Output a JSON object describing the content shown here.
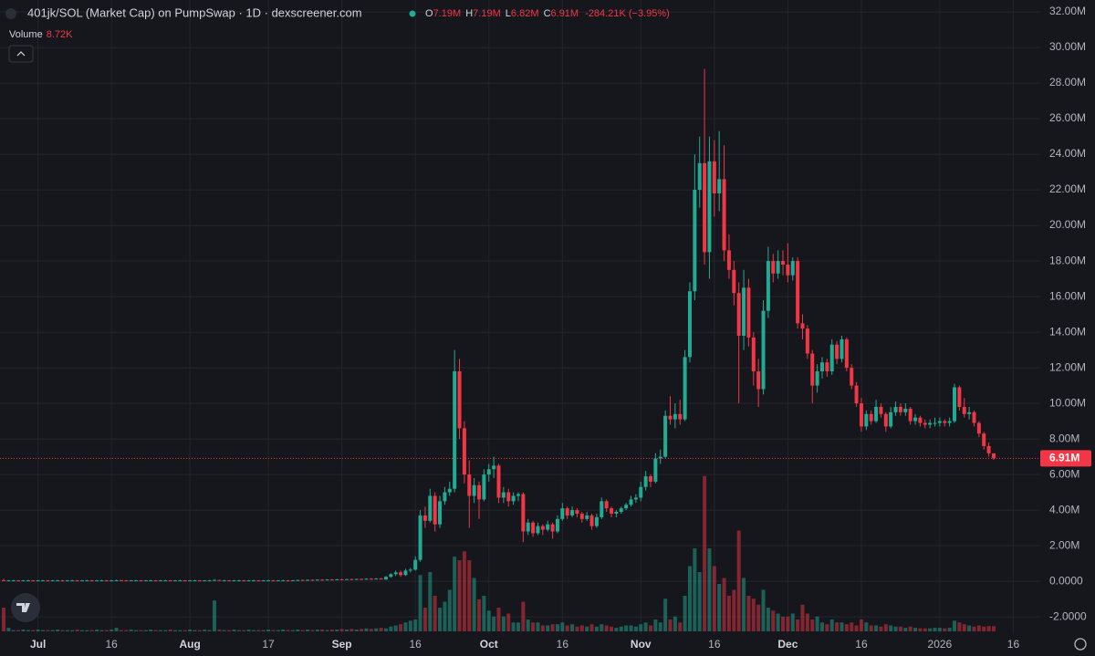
{
  "header": {
    "title": "401jk/SOL (Market Cap) on PumpSwap · 1D · dexscreener.com",
    "o_label": "O",
    "o": "7.19M",
    "h_label": "H",
    "h": "7.19M",
    "l_label": "L",
    "l": "6.82M",
    "c_label": "C",
    "c": "6.91M",
    "change": "-284.21K (−3.95%)",
    "volume_label": "Volume",
    "volume_value": "8.72K"
  },
  "chart_data": {
    "type": "candlestick",
    "up_color": "#22ab94",
    "down_color": "#f23645",
    "grid": true,
    "last_price_label": "6.91M",
    "xlim": [
      -0.75,
      211.5
    ],
    "ylim": [
      -4.2,
      32.67
    ],
    "xticks": [
      {
        "value": 7,
        "label": "Jul"
      },
      {
        "value": 22,
        "label": "16"
      },
      {
        "value": 38,
        "label": "Aug"
      },
      {
        "value": 54,
        "label": "17"
      },
      {
        "value": 69,
        "label": "Sep"
      },
      {
        "value": 84,
        "label": "16"
      },
      {
        "value": 99,
        "label": "Oct"
      },
      {
        "value": 114,
        "label": "16"
      },
      {
        "value": 130,
        "label": "Nov"
      },
      {
        "value": 145,
        "label": "16"
      },
      {
        "value": 160,
        "label": "Dec"
      },
      {
        "value": 175,
        "label": "16"
      },
      {
        "value": 191,
        "label": "2026"
      },
      {
        "value": 206,
        "label": "16"
      }
    ],
    "yticks": [
      {
        "value": -2,
        "label": "-2.0000"
      },
      {
        "value": 0,
        "label": "0.0000"
      },
      {
        "value": 2,
        "label": "2.00M"
      },
      {
        "value": 4,
        "label": "4.00M"
      },
      {
        "value": 6,
        "label": "6.00M"
      },
      {
        "value": 8,
        "label": "8.00M"
      },
      {
        "value": 10,
        "label": "10.00M"
      },
      {
        "value": 12,
        "label": "12.00M"
      },
      {
        "value": 14,
        "label": "14.00M"
      },
      {
        "value": 16,
        "label": "16.00M"
      },
      {
        "value": 18,
        "label": "18.00M"
      },
      {
        "value": 20,
        "label": "20.00M"
      },
      {
        "value": 22,
        "label": "22.00M"
      },
      {
        "value": 24,
        "label": "24.00M"
      },
      {
        "value": 26,
        "label": "26.00M"
      },
      {
        "value": 28,
        "label": "28.00M"
      },
      {
        "value": 30,
        "label": "30.00M"
      },
      {
        "value": 32,
        "label": "32.00M"
      }
    ],
    "ohlc": [
      [
        0.06,
        0.14,
        0.02,
        0.04
      ],
      [
        0.04,
        0.07,
        0.03,
        0.05
      ],
      [
        0.05,
        0.08,
        0.03,
        0.05
      ],
      [
        0.05,
        0.07,
        0.03,
        0.04
      ],
      [
        0.04,
        0.07,
        0.03,
        0.05
      ],
      [
        0.05,
        0.08,
        0.03,
        0.05
      ],
      [
        0.05,
        0.07,
        0.03,
        0.04
      ],
      [
        0.04,
        0.07,
        0.03,
        0.05
      ],
      [
        0.05,
        0.08,
        0.03,
        0.05
      ],
      [
        0.05,
        0.07,
        0.03,
        0.04
      ],
      [
        0.04,
        0.07,
        0.03,
        0.05
      ],
      [
        0.05,
        0.08,
        0.03,
        0.05
      ],
      [
        0.05,
        0.07,
        0.03,
        0.04
      ],
      [
        0.04,
        0.07,
        0.03,
        0.05
      ],
      [
        0.05,
        0.08,
        0.03,
        0.05
      ],
      [
        0.05,
        0.07,
        0.03,
        0.04
      ],
      [
        0.04,
        0.07,
        0.03,
        0.05
      ],
      [
        0.05,
        0.08,
        0.03,
        0.05
      ],
      [
        0.05,
        0.07,
        0.03,
        0.04
      ],
      [
        0.04,
        0.07,
        0.03,
        0.05
      ],
      [
        0.05,
        0.08,
        0.03,
        0.05
      ],
      [
        0.05,
        0.07,
        0.03,
        0.04
      ],
      [
        0.04,
        0.07,
        0.03,
        0.05
      ],
      [
        0.05,
        0.09,
        0.03,
        0.06
      ],
      [
        0.06,
        0.08,
        0.04,
        0.05
      ],
      [
        0.05,
        0.07,
        0.03,
        0.04
      ],
      [
        0.04,
        0.07,
        0.03,
        0.05
      ],
      [
        0.05,
        0.08,
        0.03,
        0.05
      ],
      [
        0.05,
        0.07,
        0.03,
        0.04
      ],
      [
        0.04,
        0.07,
        0.03,
        0.05
      ],
      [
        0.05,
        0.08,
        0.03,
        0.05
      ],
      [
        0.05,
        0.07,
        0.03,
        0.04
      ],
      [
        0.04,
        0.07,
        0.03,
        0.05
      ],
      [
        0.05,
        0.08,
        0.03,
        0.05
      ],
      [
        0.05,
        0.07,
        0.03,
        0.04
      ],
      [
        0.04,
        0.07,
        0.03,
        0.05
      ],
      [
        0.05,
        0.08,
        0.03,
        0.05
      ],
      [
        0.05,
        0.07,
        0.03,
        0.04
      ],
      [
        0.04,
        0.07,
        0.03,
        0.05
      ],
      [
        0.05,
        0.08,
        0.03,
        0.05
      ],
      [
        0.05,
        0.07,
        0.03,
        0.04
      ],
      [
        0.04,
        0.07,
        0.03,
        0.05
      ],
      [
        0.05,
        0.08,
        0.03,
        0.05
      ],
      [
        0.05,
        0.12,
        0.03,
        0.07
      ],
      [
        0.07,
        0.09,
        0.04,
        0.05
      ],
      [
        0.05,
        0.08,
        0.03,
        0.05
      ],
      [
        0.05,
        0.07,
        0.03,
        0.04
      ],
      [
        0.04,
        0.07,
        0.03,
        0.05
      ],
      [
        0.05,
        0.08,
        0.03,
        0.05
      ],
      [
        0.05,
        0.07,
        0.03,
        0.04
      ],
      [
        0.04,
        0.07,
        0.03,
        0.05
      ],
      [
        0.05,
        0.08,
        0.03,
        0.05
      ],
      [
        0.05,
        0.07,
        0.03,
        0.04
      ],
      [
        0.04,
        0.07,
        0.03,
        0.05
      ],
      [
        0.05,
        0.08,
        0.03,
        0.05
      ],
      [
        0.05,
        0.07,
        0.03,
        0.04
      ],
      [
        0.04,
        0.07,
        0.03,
        0.05
      ],
      [
        0.05,
        0.08,
        0.03,
        0.05
      ],
      [
        0.05,
        0.07,
        0.03,
        0.04
      ],
      [
        0.04,
        0.07,
        0.03,
        0.05
      ],
      [
        0.05,
        0.09,
        0.04,
        0.07
      ],
      [
        0.07,
        0.1,
        0.05,
        0.06
      ],
      [
        0.06,
        0.1,
        0.05,
        0.08
      ],
      [
        0.08,
        0.11,
        0.06,
        0.07
      ],
      [
        0.07,
        0.11,
        0.06,
        0.09
      ],
      [
        0.09,
        0.12,
        0.07,
        0.08
      ],
      [
        0.08,
        0.12,
        0.07,
        0.1
      ],
      [
        0.1,
        0.13,
        0.08,
        0.09
      ],
      [
        0.09,
        0.13,
        0.08,
        0.11
      ],
      [
        0.11,
        0.14,
        0.09,
        0.1
      ],
      [
        0.1,
        0.14,
        0.09,
        0.12
      ],
      [
        0.12,
        0.15,
        0.1,
        0.11
      ],
      [
        0.11,
        0.15,
        0.1,
        0.13
      ],
      [
        0.13,
        0.16,
        0.11,
        0.12
      ],
      [
        0.12,
        0.17,
        0.11,
        0.14
      ],
      [
        0.14,
        0.18,
        0.12,
        0.13
      ],
      [
        0.13,
        0.18,
        0.12,
        0.15
      ],
      [
        0.15,
        0.19,
        0.12,
        0.1
      ],
      [
        0.1,
        0.3,
        0.08,
        0.25
      ],
      [
        0.25,
        0.45,
        0.2,
        0.4
      ],
      [
        0.4,
        0.6,
        0.3,
        0.5
      ],
      [
        0.5,
        0.6,
        0.25,
        0.35
      ],
      [
        0.35,
        0.7,
        0.3,
        0.6
      ],
      [
        0.6,
        0.75,
        0.5,
        0.65
      ],
      [
        0.65,
        1.4,
        0.6,
        1.2
      ],
      [
        1.2,
        4.0,
        1.1,
        3.7
      ],
      [
        3.7,
        4.2,
        3.0,
        3.4
      ],
      [
        3.4,
        5.2,
        3.3,
        4.8
      ],
      [
        4.8,
        5.0,
        2.8,
        3.2
      ],
      [
        3.2,
        4.8,
        3.0,
        4.5
      ],
      [
        4.5,
        5.3,
        4.3,
        5.0
      ],
      [
        5.0,
        5.6,
        4.8,
        5.2
      ],
      [
        5.2,
        13.0,
        5.0,
        11.8
      ],
      [
        11.8,
        12.5,
        8.0,
        8.6
      ],
      [
        8.6,
        9.0,
        5.5,
        6.0
      ],
      [
        6.0,
        6.8,
        3.0,
        4.8
      ],
      [
        4.8,
        5.8,
        4.4,
        5.4
      ],
      [
        5.4,
        5.6,
        3.5,
        4.6
      ],
      [
        4.6,
        6.3,
        4.5,
        6.0
      ],
      [
        6.0,
        6.6,
        5.6,
        6.3
      ],
      [
        6.3,
        7.0,
        5.8,
        6.5
      ],
      [
        6.5,
        6.6,
        4.4,
        4.7
      ],
      [
        4.7,
        5.3,
        4.4,
        5.0
      ],
      [
        5.0,
        5.2,
        4.2,
        4.5
      ],
      [
        4.5,
        5.0,
        4.3,
        4.8
      ],
      [
        4.8,
        5.0,
        4.5,
        4.9
      ],
      [
        4.9,
        5.0,
        2.2,
        2.8
      ],
      [
        2.8,
        3.5,
        2.6,
        3.3
      ],
      [
        3.3,
        3.4,
        2.5,
        2.7
      ],
      [
        2.7,
        3.3,
        2.6,
        3.1
      ],
      [
        3.1,
        3.2,
        2.6,
        2.9
      ],
      [
        2.9,
        3.4,
        2.8,
        3.2
      ],
      [
        3.2,
        3.3,
        2.4,
        2.8
      ],
      [
        2.8,
        3.7,
        2.7,
        3.5
      ],
      [
        3.5,
        4.4,
        3.4,
        4.1
      ],
      [
        4.1,
        4.2,
        3.5,
        3.7
      ],
      [
        3.7,
        4.2,
        3.6,
        4.0
      ],
      [
        4.0,
        4.1,
        3.6,
        3.8
      ],
      [
        3.8,
        3.9,
        3.3,
        3.5
      ],
      [
        3.5,
        3.9,
        3.4,
        3.7
      ],
      [
        3.7,
        3.8,
        2.9,
        3.1
      ],
      [
        3.1,
        3.8,
        3.0,
        3.6
      ],
      [
        3.6,
        4.7,
        3.5,
        4.5
      ],
      [
        4.5,
        4.6,
        3.9,
        4.1
      ],
      [
        4.1,
        4.2,
        3.6,
        3.8
      ],
      [
        3.8,
        4.0,
        3.6,
        3.9
      ],
      [
        3.9,
        4.2,
        3.8,
        4.1
      ],
      [
        4.1,
        4.4,
        4.0,
        4.3
      ],
      [
        4.3,
        4.8,
        4.2,
        4.6
      ],
      [
        4.6,
        4.9,
        4.4,
        4.7
      ],
      [
        4.7,
        5.6,
        4.5,
        5.3
      ],
      [
        5.3,
        6.2,
        5.1,
        5.9
      ],
      [
        5.9,
        6.0,
        5.3,
        5.6
      ],
      [
        5.6,
        7.2,
        5.5,
        6.9
      ],
      [
        6.9,
        7.4,
        6.6,
        7.0
      ],
      [
        7.0,
        9.6,
        6.9,
        9.3
      ],
      [
        9.3,
        10.4,
        8.8,
        9.1
      ],
      [
        9.1,
        10.0,
        8.6,
        9.4
      ],
      [
        9.4,
        10.2,
        8.8,
        9.1
      ],
      [
        9.1,
        13.0,
        9.0,
        12.6
      ],
      [
        12.6,
        16.8,
        12.3,
        16.3
      ],
      [
        16.3,
        24.0,
        15.8,
        22.0
      ],
      [
        22.0,
        25.0,
        21.0,
        23.5
      ],
      [
        23.5,
        28.8,
        17.8,
        18.5
      ],
      [
        18.5,
        25.0,
        17.0,
        23.6
      ],
      [
        23.6,
        24.8,
        20.5,
        21.8
      ],
      [
        21.8,
        25.3,
        20.8,
        22.6
      ],
      [
        22.6,
        24.5,
        18.0,
        18.6
      ],
      [
        18.6,
        19.5,
        17.0,
        17.5
      ],
      [
        17.5,
        18.0,
        15.5,
        16.2
      ],
      [
        16.2,
        16.8,
        10.0,
        13.8
      ],
      [
        13.8,
        17.5,
        13.0,
        16.5
      ],
      [
        16.5,
        17.0,
        13.2,
        13.7
      ],
      [
        13.7,
        14.0,
        11.0,
        11.8
      ],
      [
        11.8,
        12.5,
        9.8,
        10.8
      ],
      [
        10.8,
        15.8,
        10.5,
        15.2
      ],
      [
        15.2,
        18.8,
        14.8,
        18.0
      ],
      [
        18.0,
        18.4,
        16.8,
        17.3
      ],
      [
        17.3,
        18.6,
        17.0,
        18.0
      ],
      [
        18.0,
        18.6,
        17.2,
        17.8
      ],
      [
        17.8,
        19.0,
        16.8,
        17.2
      ],
      [
        17.2,
        18.2,
        16.9,
        18.0
      ],
      [
        18.0,
        18.2,
        14.2,
        14.5
      ],
      [
        14.5,
        15.0,
        13.6,
        14.2
      ],
      [
        14.2,
        14.4,
        12.5,
        12.8
      ],
      [
        12.8,
        13.0,
        10.0,
        11.0
      ],
      [
        11.0,
        12.2,
        10.6,
        11.8
      ],
      [
        11.8,
        12.6,
        11.4,
        12.3
      ],
      [
        12.3,
        12.5,
        11.5,
        11.8
      ],
      [
        11.8,
        13.6,
        11.6,
        13.3
      ],
      [
        13.3,
        13.5,
        12.2,
        12.5
      ],
      [
        12.5,
        13.8,
        12.3,
        13.6
      ],
      [
        13.6,
        13.7,
        11.8,
        12.0
      ],
      [
        12.0,
        12.2,
        10.8,
        11.0
      ],
      [
        11.0,
        11.2,
        9.8,
        10.0
      ],
      [
        10.0,
        10.3,
        8.4,
        8.7
      ],
      [
        8.7,
        9.6,
        8.5,
        9.4
      ],
      [
        9.4,
        9.6,
        8.8,
        9.0
      ],
      [
        9.0,
        10.2,
        8.9,
        9.8
      ],
      [
        9.8,
        10.0,
        9.2,
        9.4
      ],
      [
        9.4,
        9.5,
        8.4,
        8.7
      ],
      [
        8.7,
        9.8,
        8.6,
        9.5
      ],
      [
        9.5,
        10.1,
        9.3,
        9.8
      ],
      [
        9.8,
        10.0,
        9.3,
        9.5
      ],
      [
        9.5,
        10.0,
        9.3,
        9.7
      ],
      [
        9.7,
        9.8,
        8.8,
        9.0
      ],
      [
        9.0,
        9.4,
        8.8,
        9.2
      ],
      [
        9.2,
        9.3,
        8.7,
        8.9
      ],
      [
        8.9,
        9.1,
        8.6,
        8.8
      ],
      [
        8.8,
        9.1,
        8.6,
        8.9
      ],
      [
        8.9,
        9.2,
        8.7,
        8.9
      ],
      [
        8.9,
        9.2,
        8.7,
        9.0
      ],
      [
        9.0,
        9.1,
        8.7,
        8.9
      ],
      [
        8.9,
        9.2,
        8.7,
        9.0
      ],
      [
        9.0,
        11.1,
        8.9,
        10.9
      ],
      [
        10.9,
        11.0,
        9.6,
        9.8
      ],
      [
        9.8,
        10.3,
        9.2,
        9.4
      ],
      [
        9.4,
        9.8,
        9.1,
        9.5
      ],
      [
        9.5,
        9.6,
        8.7,
        8.9
      ],
      [
        8.9,
        9.0,
        8.1,
        8.3
      ],
      [
        8.3,
        8.4,
        7.4,
        7.6
      ],
      [
        7.6,
        7.8,
        7.0,
        7.19
      ],
      [
        7.19,
        7.19,
        6.82,
        6.91
      ]
    ],
    "volume": [
      40,
      6,
      2,
      2,
      3,
      2,
      2,
      3,
      2,
      2,
      2,
      3,
      2,
      2,
      2,
      3,
      2,
      2,
      2,
      3,
      2,
      2,
      3,
      6,
      2,
      2,
      3,
      2,
      2,
      2,
      3,
      2,
      2,
      2,
      3,
      2,
      2,
      2,
      3,
      2,
      2,
      3,
      2,
      52,
      3,
      2,
      2,
      3,
      2,
      2,
      3,
      2,
      2,
      2,
      3,
      2,
      2,
      3,
      2,
      2,
      3,
      2,
      3,
      2,
      3,
      3,
      2,
      3,
      3,
      4,
      3,
      4,
      3,
      4,
      5,
      4,
      5,
      6,
      5,
      8,
      10,
      12,
      15,
      18,
      20,
      95,
      40,
      100,
      60,
      40,
      50,
      70,
      126,
      120,
      135,
      120,
      90,
      54,
      60,
      35,
      25,
      40,
      25,
      30,
      15,
      15,
      50,
      20,
      15,
      15,
      10,
      10,
      12,
      12,
      15,
      10,
      12,
      8,
      10,
      8,
      12,
      8,
      12,
      10,
      8,
      6,
      8,
      10,
      10,
      8,
      12,
      15,
      10,
      20,
      15,
      55,
      20,
      25,
      15,
      60,
      110,
      140,
      100,
      262,
      140,
      110,
      80,
      90,
      60,
      70,
      170,
      90,
      60,
      55,
      45,
      70,
      40,
      35,
      30,
      25,
      25,
      30,
      20,
      45,
      30,
      20,
      25,
      15,
      12,
      20,
      15,
      15,
      12,
      15,
      10,
      20,
      15,
      10,
      10,
      8,
      12,
      10,
      8,
      8,
      6,
      8,
      6,
      5,
      5,
      5,
      6,
      6,
      5,
      6,
      18,
      15,
      12,
      10,
      8,
      10,
      8,
      9,
      8.72
    ]
  }
}
